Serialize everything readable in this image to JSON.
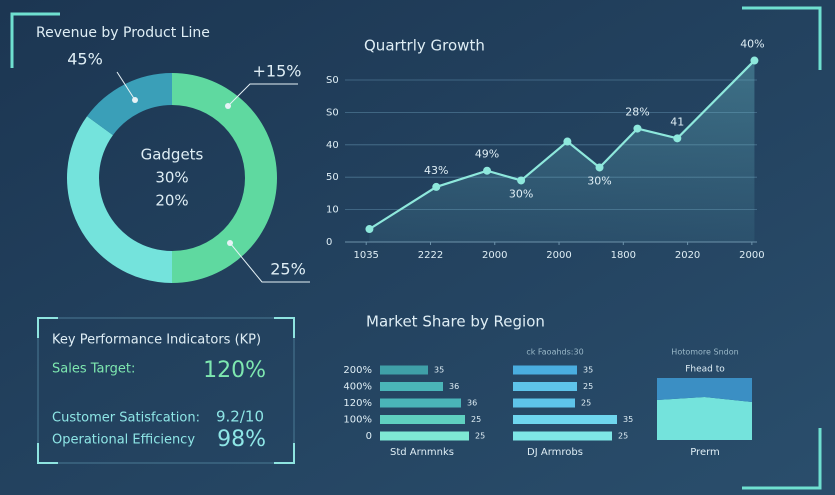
{
  "chart_data": [
    {
      "type": "donut",
      "title": "Revenue by Product Line",
      "center_text": [
        "Gadgets",
        "30%",
        "20%"
      ],
      "categories": [
        null,
        null,
        null
      ],
      "values": [
        50,
        35,
        15
      ],
      "colors": [
        "#5fd9a0",
        "#74e3dc",
        "#3a9fb8"
      ],
      "annotations": [
        "45%",
        "+15%",
        "25%"
      ]
    },
    {
      "type": "line",
      "title": "Quartrly Growth",
      "x": [
        0.05,
        1.09,
        1.88,
        2.41,
        3.13,
        3.63,
        4.22,
        4.84,
        6.04
      ],
      "values": [
        4,
        17,
        22,
        19,
        31,
        23,
        35,
        32,
        56
      ],
      "annotations": [
        null,
        "43%",
        "49%",
        "30%",
        null,
        "30%",
        "28%",
        "41",
        "40%"
      ],
      "color": "#8ee8dc",
      "xlim": [
        -0.33,
        6.08
      ],
      "ylim": [
        0,
        57
      ],
      "xticks": [
        {
          "value": 0,
          "label": "1035"
        },
        {
          "value": 1,
          "label": "2222"
        },
        {
          "value": 2,
          "label": "2000"
        },
        {
          "value": 3,
          "label": "2000"
        },
        {
          "value": 4,
          "label": "1800"
        },
        {
          "value": 5,
          "label": "2020"
        },
        {
          "value": 6,
          "label": "2000"
        }
      ],
      "yticks": [
        0,
        10,
        {
          "value": 20,
          "label": "50"
        },
        {
          "value": 30,
          "label": "40"
        },
        {
          "value": 40,
          "label": "S0"
        },
        {
          "value": 50,
          "label": "S0"
        }
      ],
      "grid": true
    },
    {
      "type": "hbar",
      "title": "Market Share by Region",
      "categories": [
        "200%",
        "400%",
        "120%",
        "100%",
        "0"
      ],
      "values": [
        48,
        63,
        81,
        85,
        89
      ],
      "value_texts": [
        "35",
        "36",
        "36",
        "25",
        "25"
      ],
      "color": "#3fa0a8",
      "colors": [
        "#3fa0a8",
        "#4ab5b8",
        "#4ab5b8",
        "#5fd0c0",
        "#7ee8d4"
      ],
      "xlim": [
        0,
        110
      ],
      "xlabel": "Std Arnmnks"
    },
    {
      "type": "hbar",
      "title": "ck Faoahds:30",
      "categories": [
        null,
        null,
        null,
        null,
        null
      ],
      "values": [
        64,
        64,
        62,
        104,
        99
      ],
      "value_texts": [
        "35",
        "25",
        "25",
        "35",
        "25"
      ],
      "colors": [
        "#4aaee0",
        "#5ec4ea",
        "#5ec4ea",
        "#6fd6ee",
        "#7ee6e6"
      ],
      "xlim": [
        0,
        110
      ],
      "xlabel": "DJ Armrobs"
    },
    {
      "type": "area",
      "title": "Hotomore Sndon",
      "subtitle": "Fhead to",
      "x": [
        0,
        1,
        2
      ],
      "xlim": [
        0,
        2
      ],
      "ylim": [
        0,
        62
      ],
      "series": [
        {
          "color": "#74e3dc",
          "values": [
            40,
            43,
            38
          ]
        },
        {
          "color": "#3b8fc4",
          "values": [
            22,
            19,
            24
          ]
        }
      ],
      "xlabel": "Prerm"
    }
  ],
  "kpi": {
    "title": "Key Performance Indicators (KP)",
    "rows": [
      [
        "Sales Target:",
        "120%"
      ],
      [
        "Customer Satisfcation:",
        "9.2/10"
      ],
      [
        "Operational Efficiency",
        "98%"
      ]
    ]
  }
}
